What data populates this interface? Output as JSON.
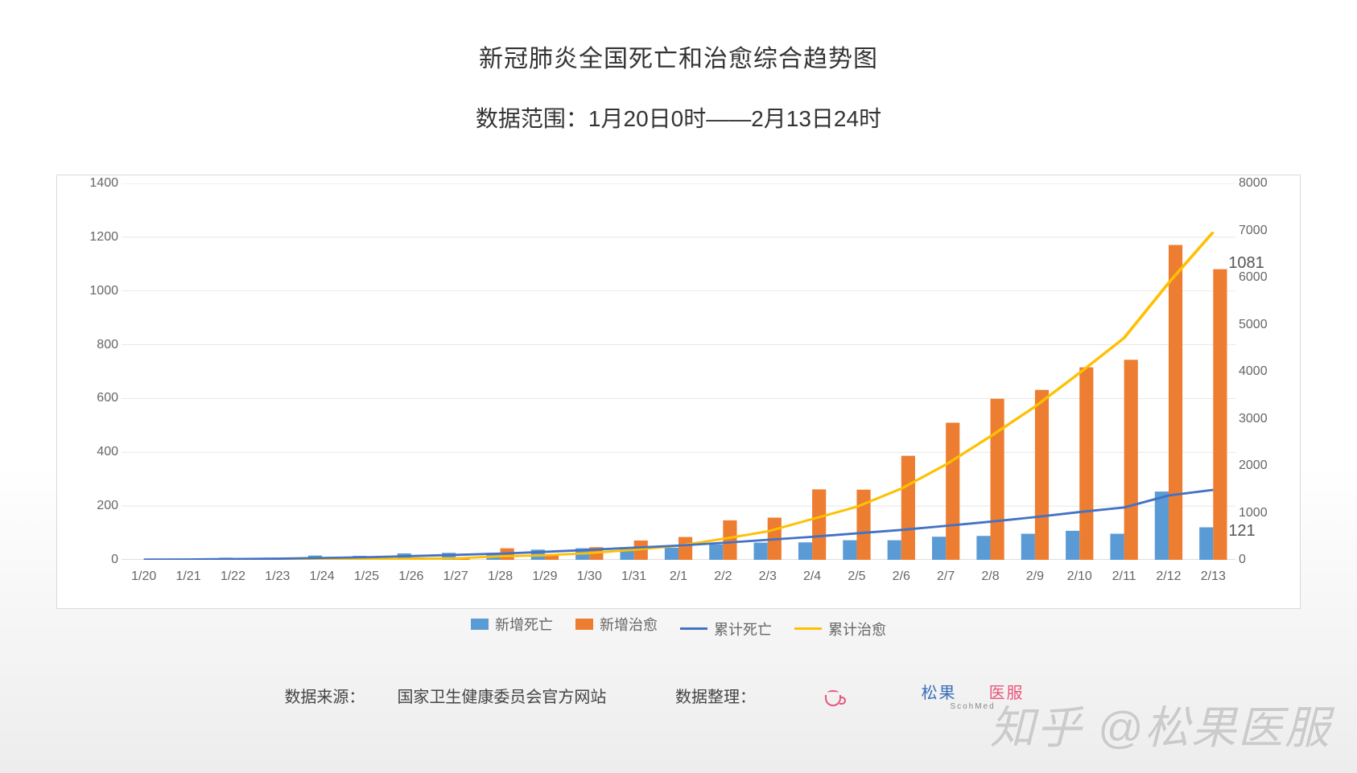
{
  "title": "新冠肺炎全国死亡和治愈综合趋势图",
  "subtitle": "数据范围：1月20日0时——2月13日24时",
  "chart": {
    "type": "bar+line-dual-axis",
    "background_color": "#ffffff",
    "border_color": "#d9d9d9",
    "grid_color": "#e6e6e6",
    "font_color": "#666666",
    "categories": [
      "1/20",
      "1/21",
      "1/22",
      "1/23",
      "1/24",
      "1/25",
      "1/26",
      "1/27",
      "1/28",
      "1/29",
      "1/30",
      "1/31",
      "2/1",
      "2/2",
      "2/3",
      "2/4",
      "2/5",
      "2/6",
      "2/7",
      "2/8",
      "2/9",
      "2/10",
      "2/11",
      "2/12",
      "2/13"
    ],
    "y_left": {
      "min": 0,
      "max": 1400,
      "step": 200,
      "ticks": [
        0,
        200,
        400,
        600,
        800,
        1000,
        1200,
        1400
      ]
    },
    "y_right": {
      "min": 0,
      "max": 8000,
      "step": 1000,
      "ticks": [
        0,
        1000,
        2000,
        3000,
        4000,
        5000,
        6000,
        7000,
        8000
      ]
    },
    "series": {
      "new_deaths": {
        "label": "新增死亡",
        "type": "bar",
        "axis": "left",
        "color": "#5b9bd5",
        "values": [
          0,
          3,
          8,
          8,
          16,
          15,
          24,
          26,
          26,
          38,
          43,
          46,
          45,
          57,
          64,
          65,
          73,
          73,
          86,
          89,
          97,
          108,
          97,
          254,
          121
        ]
      },
      "new_cured": {
        "label": "新增治愈",
        "type": "bar",
        "axis": "left",
        "color": "#ed7d31",
        "values": [
          0,
          0,
          0,
          2,
          4,
          8,
          9,
          9,
          43,
          21,
          47,
          72,
          85,
          147,
          157,
          262,
          261,
          387,
          510,
          599,
          632,
          716,
          744,
          1171,
          1081
        ]
      },
      "cum_deaths": {
        "label": "累计死亡",
        "type": "line",
        "axis": "right",
        "color": "#4472c4",
        "line_width": 3,
        "values": [
          6,
          9,
          17,
          25,
          41,
          56,
          80,
          106,
          132,
          170,
          213,
          259,
          304,
          361,
          425,
          490,
          563,
          636,
          722,
          811,
          908,
          1016,
          1113,
          1367,
          1488
        ]
      },
      "cum_cured": {
        "label": "累计治愈",
        "type": "line",
        "axis": "right",
        "color": "#ffc000",
        "line_width": 3,
        "values": [
          0,
          0,
          0,
          2,
          6,
          14,
          23,
          32,
          75,
          96,
          143,
          215,
          300,
          447,
          604,
          866,
          1127,
          1514,
          2024,
          2623,
          3255,
          3971,
          4715,
          5886,
          6967
        ]
      }
    },
    "bar_group_width": 0.62,
    "end_labels": {
      "new_cured": "1081",
      "new_deaths": "121"
    },
    "label_fontsize": 16,
    "title_fontsize": 30
  },
  "legend": {
    "items": [
      {
        "key": "new_deaths",
        "label": "新增死亡",
        "kind": "bar",
        "color": "#5b9bd5"
      },
      {
        "key": "new_cured",
        "label": "新增治愈",
        "kind": "bar",
        "color": "#ed7d31"
      },
      {
        "key": "cum_deaths",
        "label": "累计死亡",
        "kind": "line",
        "color": "#4472c4"
      },
      {
        "key": "cum_cured",
        "label": "累计治愈",
        "kind": "line",
        "color": "#ffc000"
      }
    ]
  },
  "footer": {
    "source_label": "数据来源：",
    "source_value": "国家卫生健康委员会官方网站",
    "org_label": "数据整理：",
    "brand_cn_1": "松果",
    "brand_cn_2": "医服",
    "brand_en": "ScohMed"
  },
  "watermark": "知乎 @松果医服"
}
